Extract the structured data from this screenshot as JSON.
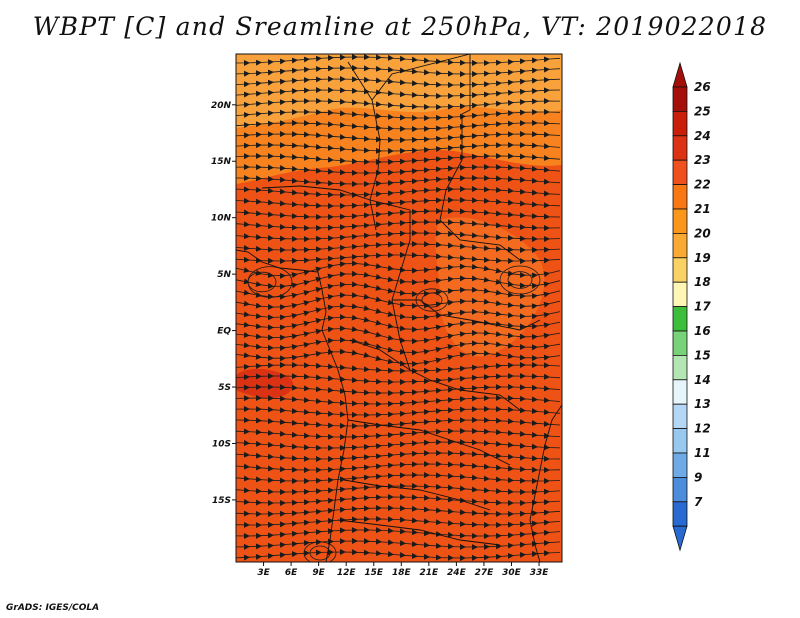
{
  "title": "WBPT [C] and Sreamline at 250hPa, VT: 2019022018",
  "credit": "GrADS: IGES/COLA",
  "map": {
    "lon_range": [
      0,
      35.5
    ],
    "lat_range": [
      -20.5,
      24.5
    ],
    "lat_ticks": [
      {
        "lat": 20,
        "label": "20N"
      },
      {
        "lat": 15,
        "label": "15N"
      },
      {
        "lat": 10,
        "label": "10N"
      },
      {
        "lat": 5,
        "label": "5N"
      },
      {
        "lat": 0,
        "label": "EQ"
      },
      {
        "lat": -5,
        "label": "5S"
      },
      {
        "lat": -10,
        "label": "10S"
      },
      {
        "lat": -15,
        "label": "15S"
      }
    ],
    "lon_ticks": [
      {
        "lon": 3,
        "label": "3E"
      },
      {
        "lon": 6,
        "label": "6E"
      },
      {
        "lon": 9,
        "label": "9E"
      },
      {
        "lon": 12,
        "label": "12E"
      },
      {
        "lon": 15,
        "label": "15E"
      },
      {
        "lon": 18,
        "label": "18E"
      },
      {
        "lon": 21,
        "label": "21E"
      },
      {
        "lon": 24,
        "label": "24E"
      },
      {
        "lon": 27,
        "label": "27E"
      },
      {
        "lon": 30,
        "label": "30E"
      },
      {
        "lon": 33,
        "label": "33E"
      }
    ]
  },
  "colorbar": {
    "levels": [
      {
        "label": "26",
        "color": "#a50f0a"
      },
      {
        "label": "25",
        "color": "#c81e0a"
      },
      {
        "label": "24",
        "color": "#dc3214"
      },
      {
        "label": "23",
        "color": "#f0501e"
      },
      {
        "label": "22",
        "color": "#fa7814"
      },
      {
        "label": "21",
        "color": "#fa9619"
      },
      {
        "label": "20",
        "color": "#faaa32"
      },
      {
        "label": "19",
        "color": "#fad264"
      },
      {
        "label": "18",
        "color": "#fff5b4"
      },
      {
        "label": "17",
        "color": "#3cbe3c"
      },
      {
        "label": "16",
        "color": "#78d278"
      },
      {
        "label": "15",
        "color": "#b4e6b4"
      },
      {
        "label": "14",
        "color": "#e6f5fa"
      },
      {
        "label": "13",
        "color": "#b4d7f5"
      },
      {
        "label": "12",
        "color": "#96c8f0"
      },
      {
        "label": "11",
        "color": "#6eaae6"
      },
      {
        "label": "9",
        "color": "#4b8cdc"
      },
      {
        "label": "7",
        "color": "#2869d2"
      }
    ],
    "top_arrow_color": "#a50f0a",
    "bottom_arrow_color": "#2869d2"
  },
  "field_colors": {
    "north_band": "#f9a23c",
    "band_mid": "#f7821e",
    "main": "#ee5214",
    "hot_patch": "#dc3214",
    "east_patch": "#f57020",
    "coast": "#111111",
    "streamline": "#1a1a1a"
  }
}
